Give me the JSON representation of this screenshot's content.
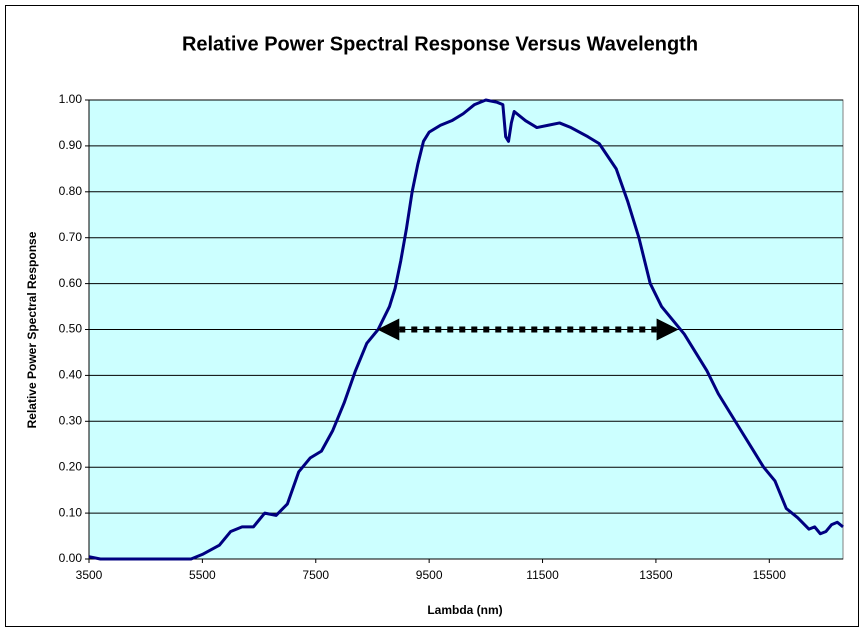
{
  "chart_data": {
    "type": "line",
    "title": "Relative Power Spectral Response Versus Wavelength",
    "x_label": "Lambda (nm)",
    "y_label": "Relative Power Spectral Response",
    "xlim": [
      3500,
      16800
    ],
    "xticks": [
      3500,
      5500,
      7500,
      9500,
      11500,
      13500,
      15500
    ],
    "ylim": [
      0,
      1
    ],
    "yticks": [
      {
        "value": 0,
        "label": "0.00"
      },
      {
        "value": 0.1,
        "label": "0.10"
      },
      {
        "value": 0.2,
        "label": "0.20"
      },
      {
        "value": 0.3,
        "label": "0.30"
      },
      {
        "value": 0.4,
        "label": "0.40"
      },
      {
        "value": 0.5,
        "label": "0.50"
      },
      {
        "value": 0.6,
        "label": "0.60"
      },
      {
        "value": 0.7,
        "label": "0.70"
      },
      {
        "value": 0.8,
        "label": "0.80"
      },
      {
        "value": 0.9,
        "label": "0.90"
      },
      {
        "value": 1,
        "label": "1.00"
      }
    ],
    "grid": true,
    "plot_background": "#ccffff",
    "x": [
      3500,
      3700,
      5300,
      5500,
      5800,
      6000,
      6200,
      6400,
      6600,
      6800,
      7000,
      7200,
      7400,
      7600,
      7800,
      8000,
      8200,
      8400,
      8600,
      8800,
      8900,
      9000,
      9100,
      9200,
      9300,
      9400,
      9500,
      9700,
      9900,
      10100,
      10300,
      10500,
      10700,
      10800,
      10850,
      10900,
      10950,
      11000,
      11200,
      11400,
      11600,
      11800,
      12000,
      12300,
      12500,
      12800,
      13000,
      13200,
      13400,
      13600,
      13800,
      14000,
      14200,
      14400,
      14600,
      14800,
      15000,
      15200,
      15400,
      15600,
      15800,
      16000,
      16200,
      16300,
      16400,
      16500,
      16600,
      16700,
      16800
    ],
    "series": [
      {
        "color": "#000080",
        "values": [
          0.005,
          0,
          0,
          0.01,
          0.03,
          0.06,
          0.07,
          0.07,
          0.1,
          0.095,
          0.12,
          0.19,
          0.22,
          0.235,
          0.28,
          0.34,
          0.41,
          0.47,
          0.5,
          0.55,
          0.59,
          0.65,
          0.72,
          0.8,
          0.86,
          0.91,
          0.93,
          0.945,
          0.955,
          0.97,
          0.99,
          1,
          0.995,
          0.99,
          0.92,
          0.91,
          0.95,
          0.975,
          0.955,
          0.94,
          0.945,
          0.95,
          0.94,
          0.92,
          0.905,
          0.85,
          0.78,
          0.7,
          0.6,
          0.55,
          0.52,
          0.49,
          0.45,
          0.41,
          0.36,
          0.32,
          0.28,
          0.24,
          0.2,
          0.17,
          0.11,
          0.09,
          0.065,
          0.07,
          0.055,
          0.06,
          0.075,
          0.08,
          0.07
        ]
      }
    ],
    "annotations": [
      {
        "type": "double-arrow",
        "x1": 8585,
        "x2": 13900,
        "y": 0.5,
        "color": "#000000"
      }
    ]
  }
}
